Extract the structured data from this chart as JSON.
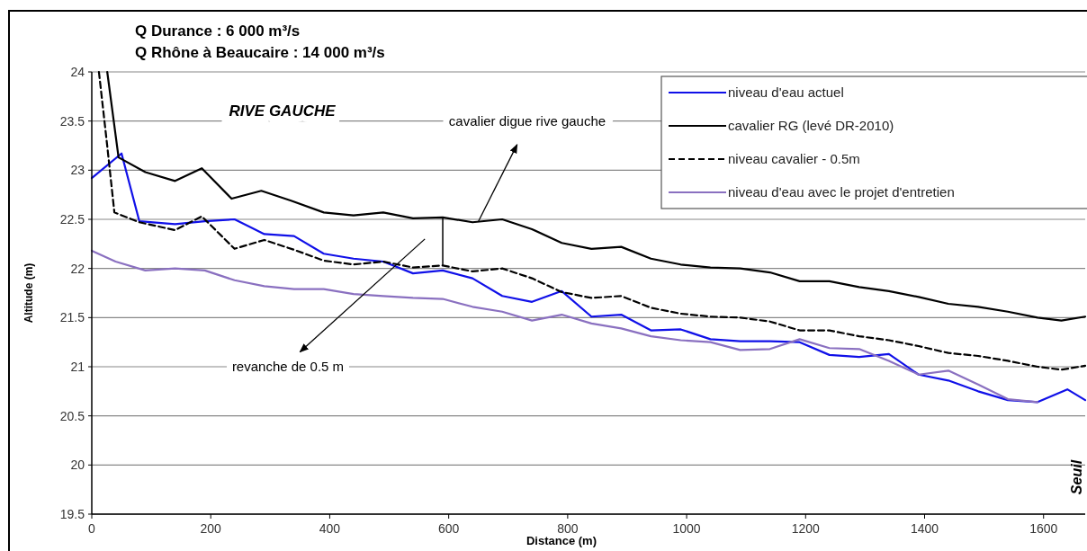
{
  "chart_data": {
    "type": "line",
    "title": "Q Durance : 6 000 m³/s",
    "subtitle": "Q Rhône à Beaucaire : 14 000 m³/s",
    "xlabel": "Distance (m)",
    "ylabel": "Altitude (m)",
    "xlim": [
      0,
      1670
    ],
    "xticks": [
      0,
      200,
      400,
      600,
      800,
      1000,
      1200,
      1400,
      1600
    ],
    "ylim": [
      19.5,
      24
    ],
    "yticks": [
      19.5,
      20,
      20.5,
      21,
      21.5,
      22,
      22.5,
      23,
      23.5,
      24
    ],
    "grid": "y",
    "legend": "top right",
    "marker": "none",
    "annotations": [
      "RIVE GAUCHE",
      "cavalier digue rive gauche",
      "revanche de 0.5 m",
      "Seuil"
    ],
    "series": [
      {
        "name": "niveau d'eau actuel",
        "color": "#1010e8",
        "line_style": "solid",
        "x": [
          0,
          50,
          80,
          140,
          190,
          240,
          290,
          340,
          390,
          440,
          490,
          540,
          590,
          640,
          690,
          740,
          790,
          840,
          890,
          940,
          990,
          1040,
          1090,
          1140,
          1190,
          1240,
          1290,
          1340,
          1390,
          1440,
          1490,
          1540,
          1590,
          1640,
          1670
        ],
        "values": [
          22.92,
          23.17,
          22.48,
          22.45,
          22.48,
          22.5,
          22.35,
          22.33,
          22.15,
          22.1,
          22.07,
          21.95,
          21.98,
          21.9,
          21.72,
          21.66,
          21.77,
          21.51,
          21.53,
          21.37,
          21.38,
          21.28,
          21.26,
          21.26,
          21.25,
          21.12,
          21.1,
          21.13,
          20.92,
          20.86,
          20.75,
          20.66,
          20.64,
          20.77,
          20.66
        ]
      },
      {
        "name": "cavalier  RG (levé DR-2010)",
        "color": "#000000",
        "line_style": "solid",
        "x": [
          26,
          45,
          90,
          140,
          185,
          235,
          285,
          335,
          390,
          440,
          490,
          540,
          590,
          640,
          690,
          740,
          790,
          840,
          890,
          940,
          990,
          1040,
          1090,
          1140,
          1190,
          1240,
          1290,
          1340,
          1390,
          1440,
          1490,
          1540,
          1590,
          1630,
          1670
        ],
        "values": [
          24,
          23.13,
          22.98,
          22.89,
          23.02,
          22.71,
          22.79,
          22.69,
          22.57,
          22.54,
          22.57,
          22.51,
          22.52,
          22.47,
          22.5,
          22.4,
          22.26,
          22.2,
          22.22,
          22.1,
          22.04,
          22.01,
          22,
          21.96,
          21.87,
          21.87,
          21.81,
          21.77,
          21.71,
          21.64,
          21.61,
          21.56,
          21.5,
          21.47,
          21.51
        ]
      },
      {
        "name": "niveau cavalier - 0.5m",
        "color": "#000000",
        "line_style": "dashed",
        "x": [
          12,
          25,
          38,
          80,
          140,
          185,
          240,
          290,
          340,
          390,
          440,
          490,
          540,
          590,
          640,
          690,
          740,
          790,
          840,
          890,
          940,
          990,
          1040,
          1090,
          1140,
          1190,
          1240,
          1290,
          1340,
          1390,
          1440,
          1490,
          1540,
          1590,
          1630,
          1670
        ],
        "values": [
          24,
          23.3,
          22.57,
          22.47,
          22.39,
          22.53,
          22.2,
          22.29,
          22.19,
          22.08,
          22.04,
          22.07,
          22.01,
          22.03,
          21.97,
          22,
          21.9,
          21.76,
          21.7,
          21.72,
          21.6,
          21.54,
          21.51,
          21.5,
          21.46,
          21.37,
          21.37,
          21.31,
          21.27,
          21.21,
          21.14,
          21.11,
          21.06,
          21,
          20.97,
          21.01
        ]
      },
      {
        "name": "niveau d'eau avec le projet d'entretien",
        "color": "#8a70c0",
        "line_style": "solid",
        "x": [
          0,
          40,
          90,
          140,
          190,
          240,
          290,
          340,
          390,
          440,
          490,
          540,
          590,
          640,
          690,
          740,
          790,
          840,
          890,
          940,
          990,
          1040,
          1090,
          1140,
          1190,
          1240,
          1290,
          1340,
          1390,
          1440,
          1490,
          1540,
          1590
        ],
        "values": [
          22.18,
          22.07,
          21.98,
          22,
          21.98,
          21.88,
          21.82,
          21.79,
          21.79,
          21.74,
          21.72,
          21.7,
          21.69,
          21.61,
          21.56,
          21.47,
          21.53,
          21.44,
          21.39,
          21.31,
          21.27,
          21.25,
          21.17,
          21.18,
          21.28,
          21.19,
          21.18,
          21.06,
          20.92,
          20.96,
          20.82,
          20.67,
          20.64
        ]
      }
    ]
  }
}
